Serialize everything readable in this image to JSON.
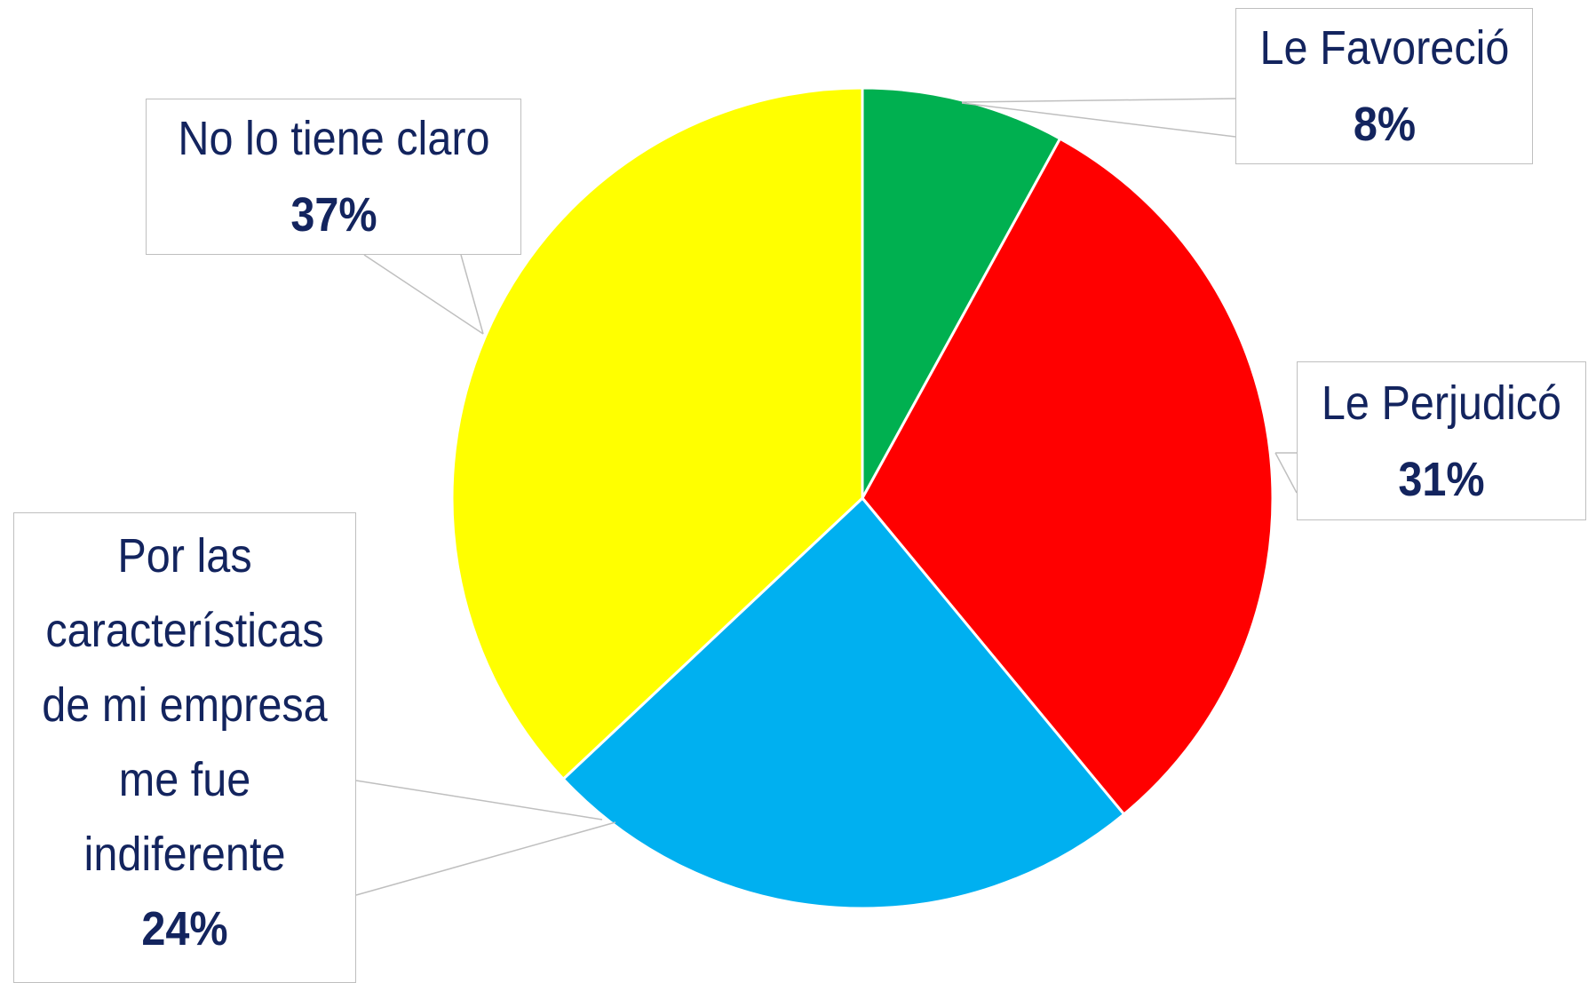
{
  "chart_data": {
    "type": "pie",
    "categories": [
      "Le Favoreció",
      "Le Perjudicó",
      "Por las características de mi empresa me fue indiferente",
      "No lo tiene claro"
    ],
    "values": [
      8,
      31,
      24,
      37
    ],
    "value_labels": [
      "8%",
      "31%",
      "24%",
      "37%"
    ],
    "colors": [
      "#00b050",
      "#ff0000",
      "#00b0f0",
      "#ffff00"
    ]
  }
}
